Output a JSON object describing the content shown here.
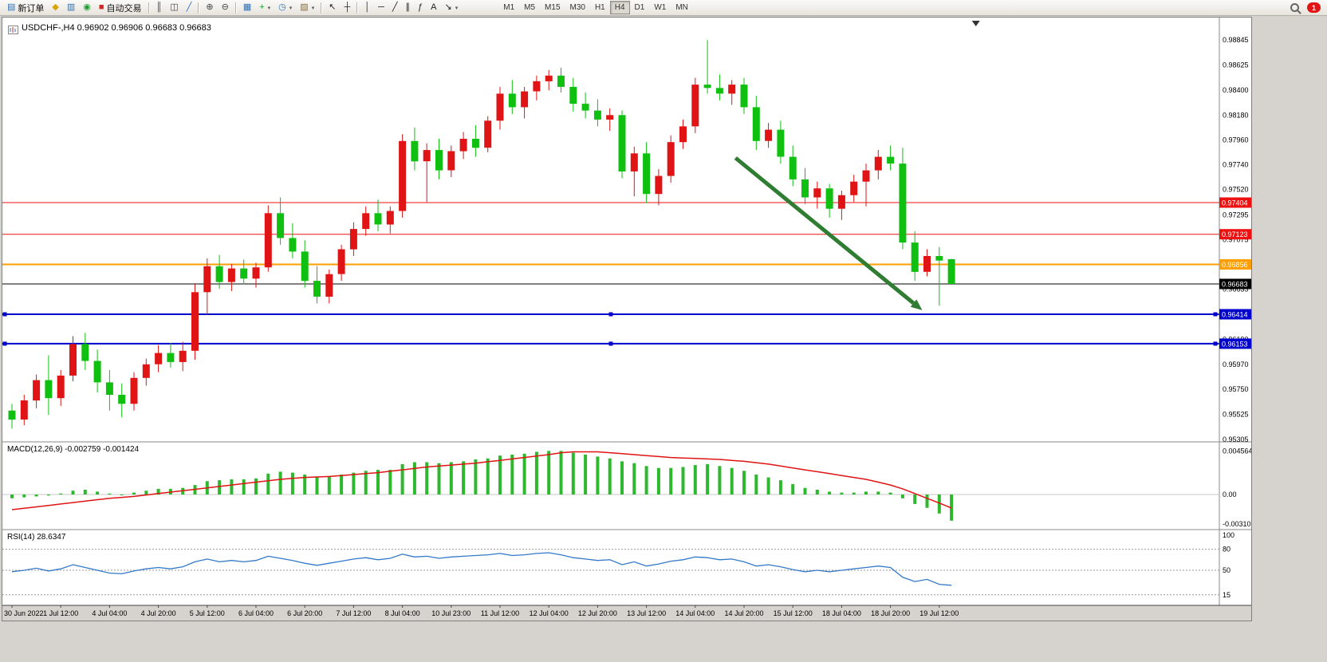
{
  "toolbar": {
    "items": [
      {
        "name": "new-order-button",
        "icon_name": "new-order-icon",
        "glyph": "▤",
        "glyph_color": "#2d6fb5",
        "label": "新订单"
      },
      {
        "name": "metaeditor-icon",
        "glyph": "◆",
        "glyph_color": "#d9a400"
      },
      {
        "name": "charts-icon",
        "glyph": "▥",
        "glyph_color": "#2d6fb5"
      },
      {
        "name": "refresh-icon",
        "glyph": "◉",
        "glyph_color": "#1f9d2f"
      },
      {
        "name": "autotrading-button",
        "icon_name": "autotrading-icon",
        "glyph": "■",
        "glyph_color": "#d42424",
        "label": "自动交易"
      },
      {
        "sep": true
      },
      {
        "name": "bar-chart-icon",
        "glyph": "║",
        "glyph_color": "#444444"
      },
      {
        "name": "candlestick-chart-icon",
        "glyph": "◫",
        "glyph_color": "#444444"
      },
      {
        "name": "line-chart-icon",
        "glyph": "╱",
        "glyph_color": "#2d6fb5"
      },
      {
        "sep": true
      },
      {
        "name": "zoom-in-icon",
        "glyph": "⊕",
        "glyph_color": "#444444"
      },
      {
        "name": "zoom-out-icon",
        "glyph": "⊖",
        "glyph_color": "#444444"
      },
      {
        "sep": true
      },
      {
        "name": "tile-windows-icon",
        "glyph": "▦",
        "glyph_color": "#2d6fb5"
      },
      {
        "name": "indicators-icon",
        "glyph": "+",
        "glyph_color": "#1f9d2f",
        "caret": true
      },
      {
        "name": "periods-icon",
        "glyph": "◷",
        "glyph_color": "#2d6fb5",
        "caret": true
      },
      {
        "name": "templates-icon",
        "glyph": "▨",
        "glyph_color": "#8a6d3b",
        "caret": true
      },
      {
        "sep": true
      },
      {
        "name": "cursor-icon",
        "glyph": "↖",
        "glyph_color": "#222222"
      },
      {
        "name": "crosshair-icon",
        "glyph": "┼",
        "glyph_color": "#222222"
      },
      {
        "sep": true
      },
      {
        "name": "vertical-line-icon",
        "glyph": "│",
        "glyph_color": "#222222"
      },
      {
        "name": "horizontal-line-icon",
        "glyph": "─",
        "glyph_color": "#222222"
      },
      {
        "name": "trendline-icon",
        "glyph": "╱",
        "glyph_color": "#222222"
      },
      {
        "name": "channel-icon",
        "glyph": "∥",
        "glyph_color": "#222222"
      },
      {
        "name": "fibonacci-icon",
        "glyph": "ƒ",
        "glyph_color": "#222222"
      },
      {
        "name": "text-icon",
        "glyph": "A",
        "glyph_color": "#222222"
      },
      {
        "name": "arrows-icon",
        "glyph": "↘",
        "glyph_color": "#222222",
        "caret": true
      }
    ],
    "timeframes": {
      "items": [
        "M1",
        "M5",
        "M15",
        "M30",
        "H1",
        "H4",
        "D1",
        "W1",
        "MN"
      ],
      "active": "H4"
    },
    "right": {
      "badge_text": "1",
      "badge_color": "#e01414"
    }
  },
  "chart": {
    "title": "USDCHF-,H4 0.96902 0.96906 0.96683 0.96683"
  },
  "chart_data": {
    "type": "candlestick",
    "symbol": "USDCHF-",
    "timeframe": "H4",
    "ohlc_current": {
      "open": "0.96902",
      "high": "0.96906",
      "low": "0.96683",
      "close": "0.96683"
    },
    "colors": {
      "bull": "#e01414",
      "bear": "#10c010",
      "macd_hist": "#2db82d",
      "macd_signal": "#e01414",
      "rsi_line": "#3379c9",
      "arrow": "#2e7d32",
      "axis_bg": "#d6d3ce",
      "panel_border": "#8a8a8a"
    },
    "candles": [
      [
        0.9556,
        0.9562,
        0.954,
        0.9548
      ],
      [
        0.9548,
        0.957,
        0.9543,
        0.9565
      ],
      [
        0.9565,
        0.9588,
        0.9558,
        0.9583
      ],
      [
        0.9583,
        0.9605,
        0.9552,
        0.9567
      ],
      [
        0.9567,
        0.9592,
        0.956,
        0.9587
      ],
      [
        0.9587,
        0.9622,
        0.9582,
        0.9615
      ],
      [
        0.9615,
        0.9625,
        0.9592,
        0.96
      ],
      [
        0.96,
        0.961,
        0.9572,
        0.9581
      ],
      [
        0.9581,
        0.9592,
        0.9556,
        0.957
      ],
      [
        0.957,
        0.958,
        0.955,
        0.9562
      ],
      [
        0.9562,
        0.959,
        0.9556,
        0.9585
      ],
      [
        0.9585,
        0.9602,
        0.9578,
        0.9597
      ],
      [
        0.9597,
        0.9614,
        0.959,
        0.9607
      ],
      [
        0.9607,
        0.9616,
        0.9594,
        0.9599
      ],
      [
        0.9599,
        0.9617,
        0.9591,
        0.9609
      ],
      [
        0.9609,
        0.9668,
        0.9601,
        0.9661
      ],
      [
        0.9661,
        0.9691,
        0.9641,
        0.9684
      ],
      [
        0.9684,
        0.9694,
        0.9664,
        0.967
      ],
      [
        0.967,
        0.9686,
        0.9662,
        0.9682
      ],
      [
        0.9682,
        0.969,
        0.9668,
        0.9673
      ],
      [
        0.9673,
        0.9687,
        0.9665,
        0.9683
      ],
      [
        0.9683,
        0.9738,
        0.9679,
        0.9731
      ],
      [
        0.9731,
        0.9745,
        0.9703,
        0.9709
      ],
      [
        0.9709,
        0.9722,
        0.9691,
        0.9697
      ],
      [
        0.9697,
        0.9707,
        0.9665,
        0.9671
      ],
      [
        0.9671,
        0.9684,
        0.9651,
        0.9657
      ],
      [
        0.9657,
        0.9681,
        0.9651,
        0.9677
      ],
      [
        0.9677,
        0.9703,
        0.9671,
        0.9699
      ],
      [
        0.9699,
        0.9723,
        0.9693,
        0.9717
      ],
      [
        0.9717,
        0.9737,
        0.9711,
        0.9731
      ],
      [
        0.9731,
        0.9743,
        0.9715,
        0.9721
      ],
      [
        0.9721,
        0.9737,
        0.9713,
        0.9733
      ],
      [
        0.9733,
        0.9801,
        0.9727,
        0.9795
      ],
      [
        0.9795,
        0.9807,
        0.9769,
        0.9777
      ],
      [
        0.9777,
        0.9793,
        0.9741,
        0.9787
      ],
      [
        0.9787,
        0.9797,
        0.9761,
        0.9769
      ],
      [
        0.9769,
        0.9791,
        0.9763,
        0.9786
      ],
      [
        0.9786,
        0.9803,
        0.9779,
        0.9797
      ],
      [
        0.9797,
        0.9809,
        0.9781,
        0.9789
      ],
      [
        0.9789,
        0.9817,
        0.9785,
        0.9813
      ],
      [
        0.9813,
        0.9843,
        0.9805,
        0.9837
      ],
      [
        0.9837,
        0.9849,
        0.9819,
        0.9825
      ],
      [
        0.9825,
        0.9843,
        0.9815,
        0.9839
      ],
      [
        0.9839,
        0.9853,
        0.9831,
        0.9848
      ],
      [
        0.9848,
        0.9858,
        0.984,
        0.9853
      ],
      [
        0.9853,
        0.986,
        0.9838,
        0.9843
      ],
      [
        0.9843,
        0.9851,
        0.9821,
        0.9828
      ],
      [
        0.9828,
        0.9838,
        0.9815,
        0.9822
      ],
      [
        0.9822,
        0.9832,
        0.9808,
        0.9814
      ],
      [
        0.9814,
        0.9824,
        0.9804,
        0.9818
      ],
      [
        0.9818,
        0.9822,
        0.9762,
        0.9768
      ],
      [
        0.9768,
        0.979,
        0.9746,
        0.9784
      ],
      [
        0.9784,
        0.9794,
        0.974,
        0.9748
      ],
      [
        0.9748,
        0.977,
        0.9738,
        0.9764
      ],
      [
        0.9764,
        0.98,
        0.9758,
        0.9794
      ],
      [
        0.9794,
        0.9814,
        0.9788,
        0.9808
      ],
      [
        0.9808,
        0.9851,
        0.9802,
        0.9845
      ],
      [
        0.9845,
        0.98845,
        0.9837,
        0.9842
      ],
      [
        0.9842,
        0.9854,
        0.9831,
        0.9837
      ],
      [
        0.9837,
        0.9849,
        0.9827,
        0.9845
      ],
      [
        0.9845,
        0.9851,
        0.9819,
        0.9825
      ],
      [
        0.9825,
        0.9835,
        0.9787,
        0.9795
      ],
      [
        0.9795,
        0.9811,
        0.9789,
        0.9805
      ],
      [
        0.9805,
        0.9813,
        0.9775,
        0.9781
      ],
      [
        0.9781,
        0.9791,
        0.9755,
        0.9761
      ],
      [
        0.9761,
        0.9771,
        0.9739,
        0.9745
      ],
      [
        0.9745,
        0.9759,
        0.9735,
        0.9753
      ],
      [
        0.9753,
        0.9757,
        0.9727,
        0.9735
      ],
      [
        0.9735,
        0.9751,
        0.9725,
        0.9747
      ],
      [
        0.9747,
        0.9765,
        0.9741,
        0.9759
      ],
      [
        0.9759,
        0.9775,
        0.9737,
        0.9769
      ],
      [
        0.9769,
        0.9787,
        0.9761,
        0.9781
      ],
      [
        0.9781,
        0.9791,
        0.9769,
        0.9775
      ],
      [
        0.9775,
        0.9789,
        0.9699,
        0.9705
      ],
      [
        0.9705,
        0.9715,
        0.9671,
        0.9679
      ],
      [
        0.9679,
        0.9699,
        0.9675,
        0.9693
      ],
      [
        0.9693,
        0.9701,
        0.9649,
        0.9689
      ],
      [
        0.96902,
        0.96906,
        0.96683,
        0.96683
      ]
    ],
    "time_labels": [
      "30 Jun 2022",
      "1 Jul 12:00",
      "4 Jul 04:00",
      "4 Jul 20:00",
      "5 Jul 12:00",
      "6 Jul 04:00",
      "6 Jul 20:00",
      "7 Jul 12:00",
      "8 Jul 04:00",
      "10 Jul 23:00",
      "11 Jul 12:00",
      "12 Jul 04:00",
      "12 Jul 20:00",
      "13 Jul 12:00",
      "14 Jul 04:00",
      "14 Jul 20:00",
      "15 Jul 12:00",
      "18 Jul 04:00",
      "18 Jul 20:00",
      "19 Jul 12:00"
    ],
    "label_every": 4,
    "price_scale_labels": [
      "0.98845",
      "0.98625",
      "0.98400",
      "0.98180",
      "0.97960",
      "0.97740",
      "0.97520",
      "0.97295",
      "0.97075",
      "0.96855",
      "0.96635",
      "0.96415",
      "0.96190",
      "0.95970",
      "0.95750",
      "0.95525",
      "0.95305"
    ],
    "hlines": [
      {
        "price": 0.97404,
        "label": "0.97404",
        "color": "#ee1111",
        "width": 1,
        "handles": false
      },
      {
        "price": 0.97123,
        "label": "0.97123",
        "color": "#ee1111",
        "width": 1,
        "handles": false
      },
      {
        "price": 0.96856,
        "label": "0.96856",
        "color": "#ff9e00",
        "width": 2,
        "handles": false
      },
      {
        "price": 0.96683,
        "label": "0.96683",
        "color": "#000000",
        "width": 1,
        "handles": false
      },
      {
        "price": 0.96414,
        "label": "0.96414",
        "color": "#0000cc",
        "width": 2,
        "handles": true
      },
      {
        "price": 0.96153,
        "label": "0.96153",
        "color": "#0000cc",
        "width": 2,
        "handles": true
      }
    ],
    "arrow": {
      "from_bar": 59.3,
      "from_price": 0.978,
      "to_bar": 74.6,
      "to_price": 0.9645
    },
    "shift_marker_bar": 79,
    "macd": {
      "display": "MACD(12,26,9) -0.002759 -0.001424",
      "scale_labels": [
        {
          "text": "0.004564",
          "value": 0.004564
        },
        {
          "text": "0.00",
          "value": 0
        },
        {
          "text": "-0.003107",
          "value": -0.003107
        }
      ],
      "hist": [
        -0.0004,
        -0.0003,
        -0.0002,
        -0.0001,
        0.0001,
        0.0004,
        0.0005,
        0.0003,
        0.0001,
        0.0,
        0.0002,
        0.0004,
        0.0006,
        0.0006,
        0.0007,
        0.001,
        0.0014,
        0.0015,
        0.0016,
        0.0016,
        0.0017,
        0.0022,
        0.0024,
        0.0023,
        0.0021,
        0.0019,
        0.0019,
        0.0021,
        0.0023,
        0.0025,
        0.0026,
        0.0026,
        0.0032,
        0.0034,
        0.0034,
        0.0033,
        0.0034,
        0.0035,
        0.0037,
        0.0038,
        0.0041,
        0.0042,
        0.0043,
        0.0045,
        0.0046,
        0.0046,
        0.0044,
        0.0042,
        0.004,
        0.0038,
        0.0035,
        0.0033,
        0.003,
        0.0028,
        0.0028,
        0.0029,
        0.0031,
        0.0032,
        0.003,
        0.0028,
        0.0025,
        0.0021,
        0.0018,
        0.0015,
        0.0011,
        0.0007,
        0.0005,
        0.0003,
        0.0002,
        0.0002,
        0.0003,
        0.0003,
        0.0002,
        -0.0004,
        -0.001,
        -0.0014,
        -0.002,
        -0.002759
      ],
      "signal": [
        -0.0016,
        -0.00145,
        -0.0013,
        -0.00115,
        -0.001,
        -0.00085,
        -0.0007,
        -0.00055,
        -0.0004,
        -0.0003,
        -0.0002,
        -5e-05,
        0.0001,
        0.00025,
        0.0004,
        0.00055,
        0.0007,
        0.00085,
        0.001,
        0.00115,
        0.0013,
        0.00145,
        0.0016,
        0.0017,
        0.0018,
        0.00185,
        0.0019,
        0.002,
        0.0021,
        0.0022,
        0.0023,
        0.00245,
        0.0026,
        0.00275,
        0.0029,
        0.003,
        0.0031,
        0.0032,
        0.0033,
        0.00345,
        0.0036,
        0.00375,
        0.0039,
        0.00405,
        0.0042,
        0.0044,
        0.0045,
        0.0045,
        0.0045,
        0.0044,
        0.0043,
        0.0042,
        0.0041,
        0.004,
        0.0039,
        0.00385,
        0.0038,
        0.00375,
        0.0037,
        0.0036,
        0.0035,
        0.00335,
        0.0032,
        0.003,
        0.0028,
        0.0026,
        0.0024,
        0.0022,
        0.002,
        0.0018,
        0.0016,
        0.0013,
        0.001,
        0.0006,
        0.0001,
        -0.0004,
        -0.0009,
        -0.001424
      ]
    },
    "rsi": {
      "display": "RSI(14) 28.6347",
      "scale_labels": [
        {
          "text": "100",
          "value": 100
        },
        {
          "text": "80",
          "value": 80
        },
        {
          "text": "50",
          "value": 50
        },
        {
          "text": "15",
          "value": 15
        }
      ],
      "levels": [
        80,
        50,
        15
      ],
      "values": [
        48,
        50,
        53,
        49,
        52,
        58,
        54,
        50,
        46,
        45,
        49,
        52,
        54,
        52,
        55,
        62,
        66,
        62,
        64,
        62,
        64,
        70,
        67,
        64,
        60,
        57,
        60,
        63,
        66,
        68,
        65,
        67,
        73,
        69,
        70,
        67,
        69,
        70,
        71,
        72,
        74,
        71,
        72,
        74,
        75,
        72,
        68,
        66,
        64,
        65,
        58,
        62,
        56,
        59,
        63,
        65,
        69,
        68,
        65,
        66,
        62,
        56,
        58,
        55,
        51,
        48,
        50,
        48,
        50,
        52,
        54,
        56,
        54,
        40,
        34,
        37,
        30,
        28.6
      ]
    }
  }
}
